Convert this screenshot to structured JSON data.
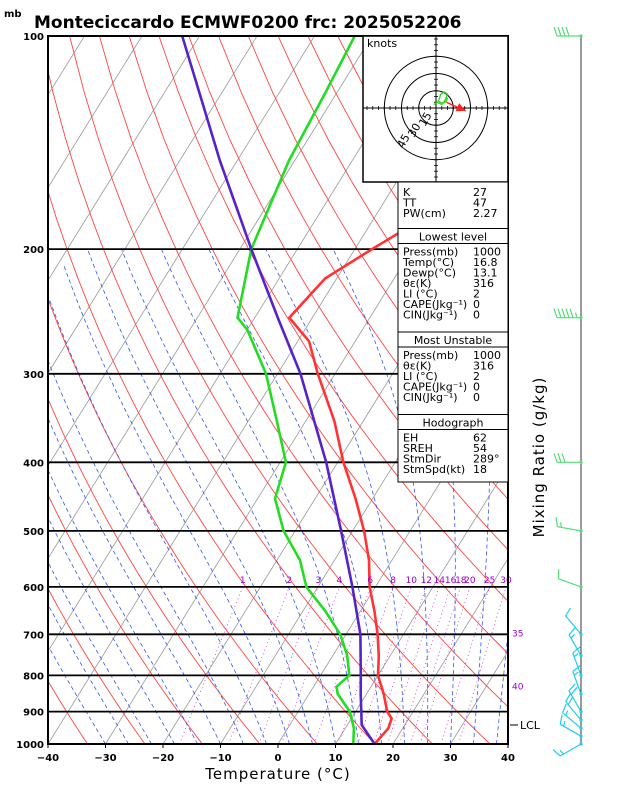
{
  "chart_data": {
    "type": "line",
    "title": "Monteciccardo ECMWF0200  frc: 2025052206",
    "xlabel": "Temperature (°C)",
    "ylabel": "mb",
    "right_label": "Mixing Ratio  (g/kg)",
    "xlim": [
      -40,
      40
    ],
    "ylim": [
      1000,
      100
    ],
    "x_ticks": [
      "−40",
      "−30",
      "−20",
      "−10",
      "0",
      "10",
      "20",
      "30",
      "40"
    ],
    "pressure_levels": [
      1000,
      900,
      800,
      700,
      600,
      500,
      400,
      300,
      200,
      100
    ],
    "pressure_ticks": [
      "1000",
      "900",
      "800",
      "700",
      "600",
      "500",
      "400",
      "300",
      "200",
      "100"
    ],
    "mixing_ratio_labels": [
      "1",
      "2",
      "3",
      "4",
      "6",
      "8",
      "10",
      "12",
      "14",
      "16",
      "18",
      "20",
      "25",
      "30"
    ],
    "mixing_ratio_values": [
      1,
      2,
      3,
      4,
      6,
      8,
      10,
      12,
      14,
      16,
      18,
      20,
      25,
      30
    ],
    "wet_bulb_labels": [
      "35",
      "40"
    ],
    "lcl_label": "LCL",
    "lcl_pressure": 940,
    "series": [
      {
        "name": "Temperature",
        "color": "#ff3333",
        "points": [
          [
            1000,
            16.8
          ],
          [
            950,
            17.5
          ],
          [
            920,
            17
          ],
          [
            900,
            15.5
          ],
          [
            850,
            13
          ],
          [
            800,
            10
          ],
          [
            750,
            8
          ],
          [
            700,
            5.5
          ],
          [
            650,
            2.5
          ],
          [
            600,
            -1
          ],
          [
            550,
            -4
          ],
          [
            500,
            -8
          ],
          [
            450,
            -13
          ],
          [
            400,
            -19
          ],
          [
            350,
            -25
          ],
          [
            300,
            -33
          ],
          [
            270,
            -38
          ],
          [
            250,
            -44
          ],
          [
            220,
            -42
          ],
          [
            200,
            -37
          ],
          [
            170,
            -28
          ],
          [
            150,
            -22
          ],
          [
            120,
            -12
          ],
          [
            100,
            -2
          ]
        ]
      },
      {
        "name": "Dewpoint",
        "color": "#22dd22",
        "points": [
          [
            1000,
            13.1
          ],
          [
            950,
            11.5
          ],
          [
            900,
            9
          ],
          [
            850,
            5
          ],
          [
            830,
            4
          ],
          [
            800,
            5
          ],
          [
            750,
            2.5
          ],
          [
            700,
            -1
          ],
          [
            650,
            -6
          ],
          [
            600,
            -12
          ],
          [
            550,
            -16
          ],
          [
            500,
            -22
          ],
          [
            450,
            -27
          ],
          [
            400,
            -29
          ],
          [
            350,
            -35
          ],
          [
            300,
            -42
          ],
          [
            260,
            -50
          ],
          [
            250,
            -53
          ],
          [
            200,
            -58
          ],
          [
            150,
            -61
          ],
          [
            120,
            -62
          ],
          [
            100,
            -63
          ]
        ]
      },
      {
        "name": "Parcel",
        "color": "#5522cc",
        "points": [
          [
            1000,
            16.8
          ],
          [
            940,
            12.5
          ],
          [
            900,
            11
          ],
          [
            850,
            9
          ],
          [
            800,
            7
          ],
          [
            700,
            2.5
          ],
          [
            600,
            -4
          ],
          [
            500,
            -12
          ],
          [
            400,
            -22
          ],
          [
            300,
            -36
          ],
          [
            250,
            -46
          ],
          [
            200,
            -58
          ],
          [
            150,
            -73
          ],
          [
            120,
            -84
          ],
          [
            100,
            -93
          ]
        ]
      }
    ],
    "stats_top": [
      {
        "label": "K",
        "value": "27"
      },
      {
        "label": "TT",
        "value": "47"
      },
      {
        "label": "PW(cm)",
        "value": "2.27"
      }
    ],
    "lowest_level": {
      "title": "Lowest level",
      "rows": [
        {
          "label": "Press(mb)",
          "value": "1000"
        },
        {
          "label": "Temp(°C)",
          "value": "16.8"
        },
        {
          "label": "Dewp(°C)",
          "value": "13.1"
        },
        {
          "label": "θε(K)",
          "value": "316"
        },
        {
          "label": "LI (°C)",
          "value": "2"
        },
        {
          "label": "CAPE(Jkg⁻¹)",
          "value": "0"
        },
        {
          "label": "CIN(Jkg⁻¹)",
          "value": "0"
        }
      ]
    },
    "most_unstable": {
      "title": "Most Unstable",
      "rows": [
        {
          "label": "Press(mb)",
          "value": "1000"
        },
        {
          "label": "θε(K)",
          "value": "316"
        },
        {
          "label": "LI (°C)",
          "value": "2"
        },
        {
          "label": "CAPE(Jkg⁻¹)",
          "value": "0"
        },
        {
          "label": "CIN(Jkg⁻¹)",
          "value": "0"
        }
      ]
    },
    "hodograph_panel": {
      "title": "Hodograph",
      "rows": [
        {
          "label": "EH",
          "value": "62"
        },
        {
          "label": "SREH",
          "value": "54"
        },
        {
          "label": "StmDir",
          "value": "289°"
        },
        {
          "label": "StmSpd(kt)",
          "value": "18"
        }
      ]
    },
    "hodograph": {
      "units_label": "knots",
      "ring_labels": [
        "15",
        "30",
        "45"
      ],
      "ring_values": [
        15,
        30,
        45
      ],
      "trace_kt": [
        [
          -2,
          -3
        ],
        [
          1,
          -5
        ],
        [
          5,
          -3
        ],
        [
          8,
          -7
        ],
        [
          10,
          -12
        ],
        [
          7,
          -14
        ],
        [
          4,
          -12
        ],
        [
          3,
          -8
        ],
        [
          2,
          -6
        ],
        [
          6,
          -4
        ],
        [
          9,
          -6
        ],
        [
          10,
          -9
        ]
      ],
      "storm_motion_kt": [
        17,
        -6
      ]
    },
    "wind_barbs": [
      {
        "pressure": 100,
        "dir": 270,
        "speed_kt": 40
      },
      {
        "pressure": 250,
        "dir": 270,
        "speed_kt": 55
      },
      {
        "pressure": 400,
        "dir": 270,
        "speed_kt": 30
      },
      {
        "pressure": 500,
        "dir": 280,
        "speed_kt": 15
      },
      {
        "pressure": 600,
        "dir": 290,
        "speed_kt": 10
      },
      {
        "pressure": 700,
        "dir": 320,
        "speed_kt": 10
      },
      {
        "pressure": 750,
        "dir": 330,
        "speed_kt": 15
      },
      {
        "pressure": 800,
        "dir": 340,
        "speed_kt": 15
      },
      {
        "pressure": 850,
        "dir": 340,
        "speed_kt": 15
      },
      {
        "pressure": 900,
        "dir": 330,
        "speed_kt": 20
      },
      {
        "pressure": 925,
        "dir": 320,
        "speed_kt": 20
      },
      {
        "pressure": 950,
        "dir": 310,
        "speed_kt": 15
      },
      {
        "pressure": 975,
        "dir": 300,
        "speed_kt": 15
      },
      {
        "pressure": 1000,
        "dir": 240,
        "speed_kt": 15
      }
    ],
    "colors": {
      "isotherm": "#999999",
      "dry_adiabat": "#ff4444",
      "moist_adiabat": "#3355ee",
      "mixing_ratio": "#cc33cc",
      "temperature": "#ff3333",
      "dewpoint": "#22dd22",
      "parcel": "#5522cc",
      "barb_upper": "#55dd77",
      "barb_lower": "#22ccee"
    },
    "grid": true
  }
}
